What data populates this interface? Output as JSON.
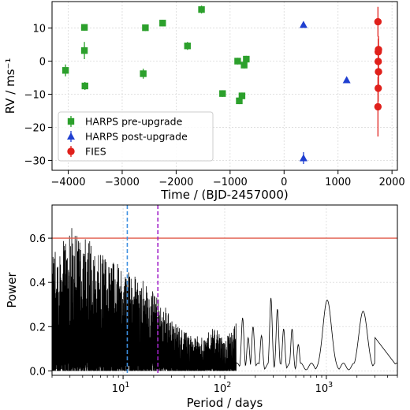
{
  "chart_data": [
    {
      "type": "scatter",
      "xlabel": "Time / (BJD-2457000)",
      "ylabel": "RV / ms⁻¹",
      "xlim": [
        -4300,
        2100
      ],
      "ylim": [
        -33,
        18
      ],
      "xticks": [
        -4000,
        -3000,
        -2000,
        -1000,
        0,
        1000,
        2000
      ],
      "yticks": [
        -30,
        -20,
        -10,
        0,
        10
      ],
      "grid": true,
      "legend": "lower-left",
      "series": [
        {
          "name": "HARPS pre-upgrade",
          "marker": "square",
          "color": "#2ca02c",
          "points": [
            {
              "x": -4050,
              "y": -2.8,
              "err": 1.8
            },
            {
              "x": -3700,
              "y": 10.2,
              "err": 1.0
            },
            {
              "x": -3700,
              "y": 3.2,
              "err": 2.6
            },
            {
              "x": -3690,
              "y": -7.5,
              "err": 1.2
            },
            {
              "x": -2610,
              "y": -3.8,
              "err": 1.5
            },
            {
              "x": -2570,
              "y": 10.1,
              "err": 1.0
            },
            {
              "x": -2250,
              "y": 11.5,
              "err": 1.0
            },
            {
              "x": -1790,
              "y": 4.6,
              "err": 1.2
            },
            {
              "x": -1530,
              "y": 15.6,
              "err": 1.2
            },
            {
              "x": -1140,
              "y": -9.8,
              "err": 1.0
            },
            {
              "x": -860,
              "y": 0.0,
              "err": 1.0
            },
            {
              "x": -830,
              "y": -12.0,
              "err": 1.0
            },
            {
              "x": -780,
              "y": -10.5,
              "err": 1.0
            },
            {
              "x": -740,
              "y": -1.2,
              "err": 1.0
            },
            {
              "x": -700,
              "y": 0.6,
              "err": 1.0
            }
          ]
        },
        {
          "name": "HARPS post-upgrade",
          "marker": "triangle",
          "color": "#1f3fd0",
          "points": [
            {
              "x": 360,
              "y": 11.0,
              "err": 0.6
            },
            {
              "x": 360,
              "y": -29.3,
              "err": 1.8
            },
            {
              "x": 1160,
              "y": -5.7,
              "err": 0.8
            }
          ]
        },
        {
          "name": "FIES",
          "marker": "circle",
          "color": "#e0201b",
          "points": [
            {
              "x": 1740,
              "y": 11.9,
              "err": 4.5
            },
            {
              "x": 1745,
              "y": 2.8,
              "err": 4.0
            },
            {
              "x": 1750,
              "y": 3.5,
              "err": 4.0
            },
            {
              "x": 1745,
              "y": -0.1,
              "err": 4.0
            },
            {
              "x": 1750,
              "y": -3.2,
              "err": 4.0
            },
            {
              "x": 1745,
              "y": -8.2,
              "err": 4.0
            },
            {
              "x": 1740,
              "y": -13.8,
              "err": 9.0
            }
          ]
        }
      ]
    },
    {
      "type": "line",
      "xlabel": "Period / days",
      "ylabel": "Power",
      "xscale": "log",
      "xlim": [
        2,
        5000
      ],
      "ylim": [
        -0.02,
        0.75
      ],
      "xticks": [
        {
          "value": 10,
          "base": "10",
          "exp": "1"
        },
        {
          "value": 100,
          "base": "10",
          "exp": "2"
        },
        {
          "value": 1000,
          "base": "10",
          "exp": "3"
        }
      ],
      "yticks": [
        0.0,
        0.2,
        0.4,
        0.6
      ],
      "ytick_labels": [
        "0.0",
        "0.2",
        "0.4",
        "0.6"
      ],
      "grid": true,
      "threshold_line": {
        "y": 0.6,
        "color": "#e05a4a"
      },
      "vertical_lines": [
        {
          "x": 11.0,
          "color": "#3d8fe0"
        },
        {
          "x": 22.0,
          "color": "#a020c8"
        }
      ],
      "line_color": "#000000",
      "envelope": [
        {
          "x": 2,
          "y": 0.55
        },
        {
          "x": 2.5,
          "y": 0.6
        },
        {
          "x": 3,
          "y": 0.66
        },
        {
          "x": 4,
          "y": 0.6
        },
        {
          "x": 5,
          "y": 0.62
        },
        {
          "x": 6,
          "y": 0.55
        },
        {
          "x": 7,
          "y": 0.5
        },
        {
          "x": 8,
          "y": 0.52
        },
        {
          "x": 10,
          "y": 0.44
        },
        {
          "x": 12,
          "y": 0.46
        },
        {
          "x": 15,
          "y": 0.43
        },
        {
          "x": 18,
          "y": 0.38
        },
        {
          "x": 22,
          "y": 0.33
        },
        {
          "x": 26,
          "y": 0.3
        },
        {
          "x": 30,
          "y": 0.24
        },
        {
          "x": 35,
          "y": 0.2
        },
        {
          "x": 45,
          "y": 0.17
        },
        {
          "x": 60,
          "y": 0.15
        },
        {
          "x": 80,
          "y": 0.2
        },
        {
          "x": 100,
          "y": 0.13
        },
        {
          "x": 120,
          "y": 0.22
        }
      ],
      "peaks": [
        {
          "x": 150,
          "y": 0.24
        },
        {
          "x": 170,
          "y": 0.15
        },
        {
          "x": 190,
          "y": 0.2
        },
        {
          "x": 230,
          "y": 0.16
        },
        {
          "x": 285,
          "y": 0.33
        },
        {
          "x": 330,
          "y": 0.28
        },
        {
          "x": 380,
          "y": 0.19
        },
        {
          "x": 460,
          "y": 0.19
        },
        {
          "x": 530,
          "y": 0.12
        },
        {
          "x": 1020,
          "y": 0.32
        },
        {
          "x": 2300,
          "y": 0.27
        }
      ]
    }
  ]
}
